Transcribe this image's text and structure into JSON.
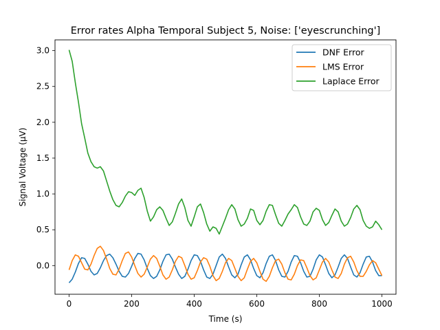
{
  "chart_data": {
    "type": "line",
    "title": "Error rates Alpha Temporal Subject 5, Noise: ['eyescrunching']",
    "xlabel": "Time (s)",
    "ylabel": "Signal Voltage (μV)",
    "xlim": [
      -45,
      1045
    ],
    "ylim": [
      -0.4,
      3.15
    ],
    "xticks": [
      0,
      200,
      400,
      600,
      800,
      1000
    ],
    "yticks": [
      -0.0,
      0.5,
      1.0,
      1.5,
      2.0,
      2.5,
      3.0
    ],
    "xtick_labels": [
      "0",
      "200",
      "400",
      "600",
      "800",
      "1000"
    ],
    "ytick_labels": [
      "0.0",
      "0.5",
      "1.0",
      "1.5",
      "2.0",
      "2.5",
      "3.0"
    ],
    "legend": "top-right",
    "grid": false,
    "series": [
      {
        "name": "DNF Error",
        "color": "#1f77b4",
        "x": [
          0,
          10,
          20,
          30,
          40,
          50,
          60,
          70,
          80,
          90,
          100,
          110,
          120,
          130,
          140,
          150,
          160,
          170,
          180,
          190,
          200,
          210,
          220,
          230,
          240,
          250,
          260,
          270,
          280,
          290,
          300,
          310,
          320,
          330,
          340,
          350,
          360,
          370,
          380,
          390,
          400,
          410,
          420,
          430,
          440,
          450,
          460,
          470,
          480,
          490,
          500,
          510,
          520,
          530,
          540,
          550,
          560,
          570,
          580,
          590,
          600,
          610,
          620,
          630,
          640,
          650,
          660,
          670,
          680,
          690,
          700,
          710,
          720,
          730,
          740,
          750,
          760,
          770,
          780,
          790,
          800,
          810,
          820,
          830,
          840,
          850,
          860,
          870,
          880,
          890,
          900,
          910,
          920,
          930,
          940,
          950,
          960,
          970,
          980,
          990,
          1000
        ],
        "y": [
          -0.24,
          -0.19,
          -0.09,
          0.03,
          0.11,
          0.1,
          0.02,
          -0.08,
          -0.13,
          -0.11,
          -0.03,
          0.07,
          0.14,
          0.16,
          0.11,
          0.02,
          -0.08,
          -0.15,
          -0.16,
          -0.11,
          -0.01,
          0.1,
          0.17,
          0.16,
          0.08,
          -0.04,
          -0.14,
          -0.18,
          -0.15,
          -0.06,
          0.06,
          0.15,
          0.16,
          0.09,
          -0.02,
          -0.12,
          -0.18,
          -0.15,
          -0.05,
          0.07,
          0.15,
          0.14,
          0.06,
          -0.06,
          -0.16,
          -0.18,
          -0.12,
          0.0,
          0.12,
          0.16,
          0.1,
          -0.02,
          -0.13,
          -0.17,
          -0.12,
          0.01,
          0.12,
          0.15,
          0.08,
          -0.04,
          -0.14,
          -0.17,
          -0.1,
          0.03,
          0.13,
          0.15,
          0.07,
          -0.06,
          -0.15,
          -0.16,
          -0.08,
          0.05,
          0.14,
          0.13,
          0.04,
          -0.08,
          -0.16,
          -0.15,
          -0.05,
          0.08,
          0.15,
          0.12,
          0.01,
          -0.11,
          -0.17,
          -0.13,
          -0.02,
          0.1,
          0.15,
          0.1,
          -0.02,
          -0.13,
          -0.16,
          -0.1,
          0.02,
          0.12,
          0.13,
          0.05,
          -0.07,
          -0.14,
          -0.14
        ]
      },
      {
        "name": "LMS Error",
        "color": "#ff7f0e",
        "x": [
          0,
          10,
          20,
          30,
          40,
          50,
          60,
          70,
          80,
          90,
          100,
          110,
          120,
          130,
          140,
          150,
          160,
          170,
          180,
          190,
          200,
          210,
          220,
          230,
          240,
          250,
          260,
          270,
          280,
          290,
          300,
          310,
          320,
          330,
          340,
          350,
          360,
          370,
          380,
          390,
          400,
          410,
          420,
          430,
          440,
          450,
          460,
          470,
          480,
          490,
          500,
          510,
          520,
          530,
          540,
          550,
          560,
          570,
          580,
          590,
          600,
          610,
          620,
          630,
          640,
          650,
          660,
          670,
          680,
          690,
          700,
          710,
          720,
          730,
          740,
          750,
          760,
          770,
          780,
          790,
          800,
          810,
          820,
          830,
          840,
          850,
          860,
          870,
          880,
          890,
          900,
          910,
          920,
          930,
          940,
          950,
          960,
          970,
          980,
          990,
          1000
        ],
        "y": [
          -0.06,
          0.07,
          0.15,
          0.13,
          0.04,
          -0.05,
          -0.06,
          0.02,
          0.14,
          0.24,
          0.27,
          0.21,
          0.09,
          -0.04,
          -0.12,
          -0.13,
          -0.05,
          0.07,
          0.17,
          0.19,
          0.12,
          0.0,
          -0.11,
          -0.16,
          -0.12,
          -0.02,
          0.09,
          0.14,
          0.1,
          -0.01,
          -0.13,
          -0.19,
          -0.16,
          -0.06,
          0.06,
          0.13,
          0.11,
          0.0,
          -0.12,
          -0.19,
          -0.17,
          -0.07,
          0.05,
          0.11,
          0.09,
          -0.01,
          -0.14,
          -0.21,
          -0.18,
          -0.08,
          0.04,
          0.1,
          0.07,
          -0.04,
          -0.15,
          -0.21,
          -0.17,
          -0.05,
          0.06,
          0.1,
          0.04,
          -0.08,
          -0.19,
          -0.22,
          -0.15,
          -0.03,
          0.07,
          0.09,
          0.02,
          -0.1,
          -0.19,
          -0.2,
          -0.12,
          0.0,
          0.08,
          0.07,
          -0.03,
          -0.14,
          -0.2,
          -0.17,
          -0.06,
          0.05,
          0.1,
          0.05,
          -0.06,
          -0.16,
          -0.18,
          -0.11,
          0.02,
          0.11,
          0.13,
          0.05,
          -0.07,
          -0.15,
          -0.15,
          -0.08,
          0.01,
          0.07,
          0.04,
          -0.05,
          -0.14
        ]
      },
      {
        "name": "Laplace Error",
        "color": "#2ca02c",
        "x": [
          0,
          10,
          20,
          30,
          40,
          50,
          60,
          70,
          80,
          90,
          100,
          110,
          120,
          130,
          140,
          150,
          160,
          170,
          180,
          190,
          200,
          210,
          220,
          230,
          240,
          250,
          260,
          270,
          280,
          290,
          300,
          310,
          320,
          330,
          340,
          350,
          360,
          370,
          380,
          390,
          400,
          410,
          420,
          430,
          440,
          450,
          460,
          470,
          480,
          490,
          500,
          510,
          520,
          530,
          540,
          550,
          560,
          570,
          580,
          590,
          600,
          610,
          620,
          630,
          640,
          650,
          660,
          670,
          680,
          690,
          700,
          710,
          720,
          730,
          740,
          750,
          760,
          770,
          780,
          790,
          800,
          810,
          820,
          830,
          840,
          850,
          860,
          870,
          880,
          890,
          900,
          910,
          920,
          930,
          940,
          950,
          960,
          970,
          980,
          990,
          1000
        ],
        "y": [
          3.01,
          2.85,
          2.55,
          2.28,
          1.98,
          1.78,
          1.57,
          1.45,
          1.38,
          1.36,
          1.38,
          1.32,
          1.18,
          1.04,
          0.92,
          0.84,
          0.82,
          0.88,
          0.97,
          1.03,
          1.02,
          0.98,
          1.05,
          1.08,
          0.95,
          0.76,
          0.62,
          0.68,
          0.78,
          0.82,
          0.77,
          0.66,
          0.56,
          0.61,
          0.73,
          0.86,
          0.93,
          0.81,
          0.63,
          0.55,
          0.68,
          0.82,
          0.86,
          0.74,
          0.58,
          0.48,
          0.54,
          0.52,
          0.44,
          0.55,
          0.66,
          0.78,
          0.85,
          0.79,
          0.64,
          0.55,
          0.58,
          0.66,
          0.79,
          0.77,
          0.63,
          0.57,
          0.63,
          0.76,
          0.85,
          0.84,
          0.71,
          0.59,
          0.55,
          0.63,
          0.72,
          0.78,
          0.85,
          0.81,
          0.68,
          0.58,
          0.56,
          0.62,
          0.75,
          0.8,
          0.77,
          0.64,
          0.56,
          0.6,
          0.7,
          0.79,
          0.75,
          0.62,
          0.55,
          0.58,
          0.67,
          0.79,
          0.84,
          0.78,
          0.63,
          0.55,
          0.52,
          0.54,
          0.62,
          0.57,
          0.5
        ]
      }
    ]
  }
}
